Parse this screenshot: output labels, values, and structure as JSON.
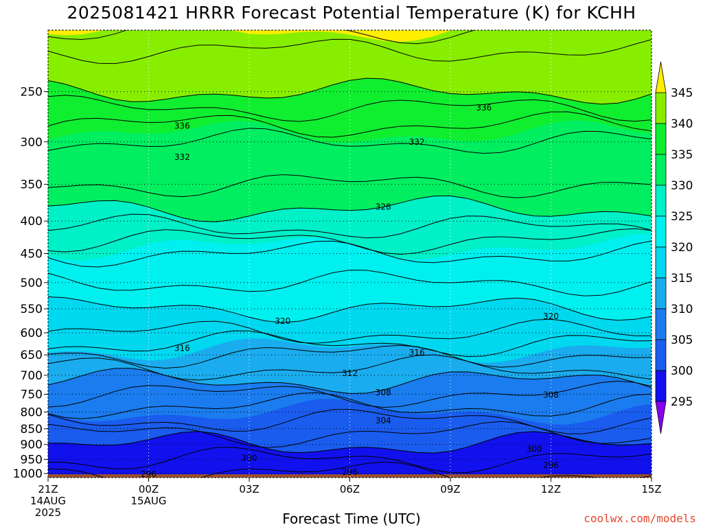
{
  "title": "2025081421 HRRR Forecast Potential Temperature (K) for KCHH",
  "credit": "coolwx.com/models",
  "colors": {
    "band_295_300": "#1111ee",
    "band_300_305": "#1a5cee",
    "band_305_310": "#1a7cee",
    "band_310_315": "#1aacee",
    "band_315_320": "#00d8f0",
    "band_320_325": "#00f0f0",
    "band_325_330": "#00f0c8",
    "band_330_335": "#00ee60",
    "band_335_340": "#10ee30",
    "band_340_345": "#88ee00",
    "band_above_345": "#ffee00",
    "below_295": "#8800ee",
    "ground": "#a0522d"
  },
  "chart_data": {
    "type": "contour",
    "variable": "Potential Temperature (K)",
    "xlabel": "Forecast Time (UTC)",
    "x_ticks": [
      {
        "hour": 0,
        "label": [
          "21Z",
          "14AUG",
          "2025"
        ]
      },
      {
        "hour": 3,
        "label": [
          "00Z",
          "15AUG"
        ]
      },
      {
        "hour": 6,
        "label": [
          "03Z"
        ]
      },
      {
        "hour": 9,
        "label": [
          "06Z"
        ]
      },
      {
        "hour": 12,
        "label": [
          "09Z"
        ]
      },
      {
        "hour": 15,
        "label": [
          "12Z"
        ]
      },
      {
        "hour": 18,
        "label": [
          "15Z"
        ]
      }
    ],
    "x_range_hours": [
      0,
      18
    ],
    "y_axis": "pressure (hPa)",
    "y_ticks": [
      250,
      300,
      350,
      400,
      450,
      500,
      550,
      600,
      650,
      700,
      750,
      800,
      850,
      900,
      950,
      1000
    ],
    "y_range": [
      200,
      1015
    ],
    "y_scale": "log",
    "colorbar": {
      "ticks": [
        295,
        300,
        305,
        310,
        315,
        320,
        325,
        330,
        335,
        340,
        345
      ],
      "range": [
        295,
        345
      ],
      "extend": "both"
    },
    "contour_interval": 2,
    "contour_labels": [
      {
        "value": "336",
        "hour": 4.0,
        "p": 283
      },
      {
        "value": "336",
        "hour": 13.0,
        "p": 265
      },
      {
        "value": "332",
        "hour": 4.0,
        "p": 317
      },
      {
        "value": "332",
        "hour": 11.0,
        "p": 300
      },
      {
        "value": "328",
        "hour": 10.0,
        "p": 380
      },
      {
        "value": "320",
        "hour": 7.0,
        "p": 575
      },
      {
        "value": "320",
        "hour": 15.0,
        "p": 565
      },
      {
        "value": "316",
        "hour": 4.0,
        "p": 635
      },
      {
        "value": "316",
        "hour": 11.0,
        "p": 645
      },
      {
        "value": "312",
        "hour": 9.0,
        "p": 695
      },
      {
        "value": "308",
        "hour": 10.0,
        "p": 745
      },
      {
        "value": "308",
        "hour": 15.0,
        "p": 752
      },
      {
        "value": "304",
        "hour": 10.0,
        "p": 825
      },
      {
        "value": "300",
        "hour": 6.0,
        "p": 945
      },
      {
        "value": "300",
        "hour": 14.5,
        "p": 915
      },
      {
        "value": "296",
        "hour": 3.0,
        "p": 1003
      },
      {
        "value": "296",
        "hour": 9.0,
        "p": 995
      },
      {
        "value": "296",
        "hour": 15.0,
        "p": 970
      }
    ],
    "theta_profile_at_start": [
      {
        "p": 215,
        "theta": 342
      },
      {
        "p": 250,
        "theta": 340
      },
      {
        "p": 300,
        "theta": 334
      },
      {
        "p": 350,
        "theta": 332
      },
      {
        "p": 400,
        "theta": 329
      },
      {
        "p": 450,
        "theta": 324
      },
      {
        "p": 500,
        "theta": 322
      },
      {
        "p": 550,
        "theta": 320
      },
      {
        "p": 600,
        "theta": 318
      },
      {
        "p": 650,
        "theta": 314
      },
      {
        "p": 700,
        "theta": 311
      },
      {
        "p": 750,
        "theta": 308
      },
      {
        "p": 800,
        "theta": 305
      },
      {
        "p": 850,
        "theta": 303
      },
      {
        "p": 900,
        "theta": 300
      },
      {
        "p": 950,
        "theta": 298
      },
      {
        "p": 1000,
        "theta": 296
      }
    ]
  }
}
